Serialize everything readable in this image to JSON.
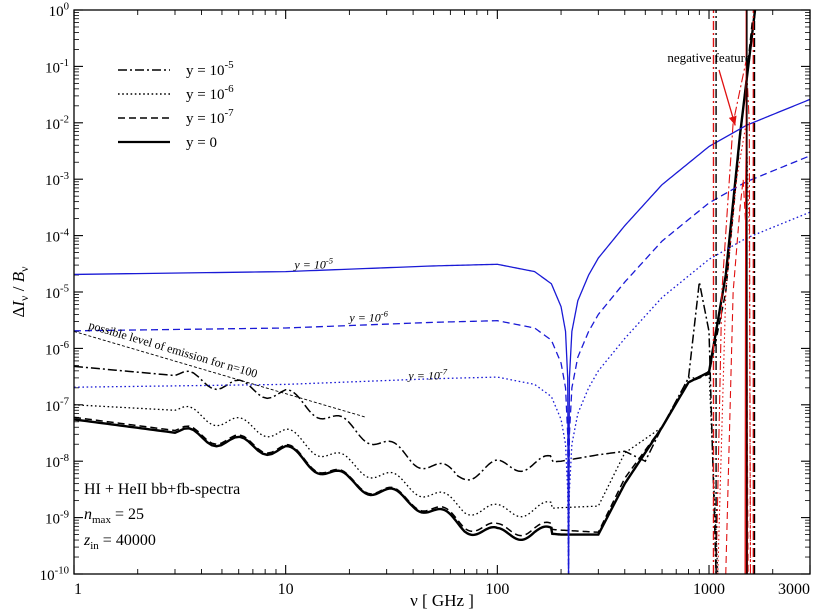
{
  "chart_data": {
    "type": "line",
    "title": "",
    "xlabel": {
      "base": "ν",
      "unit": " [ GHz ]"
    },
    "ylabel": {
      "delta": "Δ",
      "I": "I",
      "B": "B",
      "sub": "ν",
      "slash": " / "
    },
    "xscale": "log",
    "yscale": "log",
    "xlim": [
      1,
      3000
    ],
    "ylim": [
      1e-10,
      1
    ],
    "x_ticks": [
      {
        "value": 1,
        "label": "1"
      },
      {
        "value": 10,
        "label": "10"
      },
      {
        "value": 100,
        "label": "100"
      },
      {
        "value": 1000,
        "label": "1000"
      },
      {
        "value": 3000,
        "label": "3000"
      }
    ],
    "y_ticks": [
      {
        "value": 1e-10,
        "base": "10",
        "exp": "-10"
      },
      {
        "value": 1e-09,
        "base": "10",
        "exp": "-9"
      },
      {
        "value": 1e-08,
        "base": "10",
        "exp": "-8"
      },
      {
        "value": 1e-07,
        "base": "10",
        "exp": "-7"
      },
      {
        "value": 1e-06,
        "base": "10",
        "exp": "-6"
      },
      {
        "value": 1e-05,
        "base": "10",
        "exp": "-5"
      },
      {
        "value": 0.0001,
        "base": "10",
        "exp": "-4"
      },
      {
        "value": 0.001,
        "base": "10",
        "exp": "-3"
      },
      {
        "value": 0.01,
        "base": "10",
        "exp": "-2"
      },
      {
        "value": 0.1,
        "base": "10",
        "exp": "-1"
      },
      {
        "value": 1,
        "base": "10",
        "exp": "0"
      }
    ],
    "legend": {
      "position": "top-left",
      "entries": [
        {
          "label": "y = 10",
          "exp": "-5",
          "style": "dashdot"
        },
        {
          "label": "y = 10",
          "exp": "-6",
          "style": "dotted"
        },
        {
          "label": "y = 10",
          "exp": "-7",
          "style": "dashed"
        },
        {
          "label": "y = 0",
          "exp": "",
          "style": "solid"
        }
      ]
    },
    "colors": {
      "spectra": "#000000",
      "y_distortion": "#1a1ad6",
      "negative": "#e01010"
    },
    "series": [
      {
        "name": "y = 10^-5 (HI+HeII)",
        "color": "#000000",
        "dash": "dashdot",
        "width": 1.5,
        "points": [
          [
            1,
            4.8e-07
          ],
          [
            3,
            3.3e-07
          ],
          [
            10,
            1.5e-07
          ],
          [
            20,
            4e-08
          ],
          [
            40,
            1.1e-08
          ],
          [
            65,
            5.5e-09
          ],
          [
            100,
            8e-09
          ],
          [
            200,
            1e-08
          ],
          [
            300,
            1.3e-08
          ],
          [
            400,
            1.5e-08
          ],
          [
            500,
            1e-08
          ],
          [
            600,
            4e-08
          ],
          [
            800,
            3e-07
          ],
          [
            900,
            1.5e-05
          ],
          [
            1000,
            2e-06
          ],
          [
            1080,
            1e-10
          ]
        ]
      },
      {
        "name": "y = 10^-6 (HI+HeII)",
        "color": "#000000",
        "dash": "dotted",
        "width": 1.3,
        "points": [
          [
            1,
            1e-07
          ],
          [
            3,
            8e-08
          ],
          [
            10,
            3e-08
          ],
          [
            20,
            9e-09
          ],
          [
            40,
            3.5e-09
          ],
          [
            70,
            1.5e-09
          ],
          [
            100,
            1.3e-09
          ],
          [
            150,
            1.4e-09
          ],
          [
            200,
            1.5e-09
          ],
          [
            300,
            1.6e-09
          ],
          [
            400,
            1.4e-08
          ],
          [
            600,
            4e-08
          ],
          [
            800,
            3e-07
          ],
          [
            900,
            3e-07
          ],
          [
            1000,
            4e-07
          ],
          [
            1100,
            1e-10
          ]
        ]
      },
      {
        "name": "y = 10^-7 (HI+HeII)",
        "color": "#000000",
        "dash": "dashed",
        "width": 1.5,
        "points": [
          [
            1,
            6e-08
          ],
          [
            3,
            3.5e-08
          ],
          [
            10,
            1.6e-08
          ],
          [
            20,
            4.5e-09
          ],
          [
            40,
            2e-09
          ],
          [
            70,
            8e-10
          ],
          [
            100,
            6e-10
          ],
          [
            150,
            6.5e-10
          ],
          [
            200,
            6e-10
          ],
          [
            300,
            5.5e-10
          ],
          [
            400,
            5e-09
          ],
          [
            600,
            4e-08
          ],
          [
            800,
            2.5e-07
          ],
          [
            1000,
            3.5e-07
          ],
          [
            1200,
            1e-05
          ],
          [
            1400,
            0.005
          ],
          [
            1600,
            0.6
          ]
        ]
      },
      {
        "name": "y = 0 (HI+HeII)",
        "color": "#000000",
        "dash": "solid",
        "width": 2.4,
        "points": [
          [
            1,
            5.5e-08
          ],
          [
            3,
            3.2e-08
          ],
          [
            10,
            1.5e-08
          ],
          [
            20,
            4.3e-09
          ],
          [
            40,
            1.9e-09
          ],
          [
            70,
            7e-10
          ],
          [
            100,
            5e-10
          ],
          [
            150,
            5.5e-10
          ],
          [
            200,
            5e-10
          ],
          [
            300,
            5e-10
          ],
          [
            400,
            4e-09
          ],
          [
            600,
            4e-08
          ],
          [
            800,
            2.5e-07
          ],
          [
            1000,
            3.8e-07
          ],
          [
            1200,
            2e-05
          ],
          [
            1400,
            0.006
          ],
          [
            1650,
            1
          ]
        ]
      },
      {
        "name": "y-distortion y = 10^-5",
        "color": "#1a1ad6",
        "dash": "solid",
        "width": 1.3,
        "points": [
          [
            1,
            2.05e-05
          ],
          [
            10,
            2.3e-05
          ],
          [
            50,
            2.9e-05
          ],
          [
            100,
            3.1e-05
          ],
          [
            150,
            2.3e-05
          ],
          [
            180,
            1.4e-05
          ],
          [
            200,
            5.5e-06
          ],
          [
            210,
            2e-06
          ],
          [
            215,
            3e-07
          ],
          [
            217,
            1e-10
          ],
          [
            219,
            3e-07
          ],
          [
            225,
            2e-06
          ],
          [
            240,
            7e-06
          ],
          [
            270,
            2e-05
          ],
          [
            300,
            4e-05
          ],
          [
            400,
            0.00015
          ],
          [
            600,
            0.0008
          ],
          [
            1000,
            0.0038
          ],
          [
            1500,
            0.009
          ],
          [
            2000,
            0.014
          ],
          [
            3000,
            0.026
          ]
        ]
      },
      {
        "name": "y-distortion y = 10^-6",
        "color": "#1a1ad6",
        "dash": "dashed",
        "width": 1.3,
        "points": [
          [
            1,
            2.05e-06
          ],
          [
            10,
            2.3e-06
          ],
          [
            50,
            2.9e-06
          ],
          [
            100,
            3.1e-06
          ],
          [
            150,
            2.3e-06
          ],
          [
            180,
            1.4e-06
          ],
          [
            200,
            5.5e-07
          ],
          [
            210,
            2e-07
          ],
          [
            215,
            3e-08
          ],
          [
            217,
            1e-10
          ],
          [
            219,
            3e-08
          ],
          [
            225,
            2e-07
          ],
          [
            240,
            7e-07
          ],
          [
            270,
            2e-06
          ],
          [
            300,
            4e-06
          ],
          [
            400,
            1.5e-05
          ],
          [
            600,
            8e-05
          ],
          [
            1000,
            0.00038
          ],
          [
            1500,
            0.0009
          ],
          [
            2000,
            0.0014
          ],
          [
            3000,
            0.0026
          ]
        ]
      },
      {
        "name": "y-distortion y = 10^-7",
        "color": "#1a1ad6",
        "dash": "dotted",
        "width": 1.3,
        "points": [
          [
            1,
            2.05e-07
          ],
          [
            10,
            2.3e-07
          ],
          [
            50,
            2.9e-07
          ],
          [
            100,
            3.1e-07
          ],
          [
            150,
            2.3e-07
          ],
          [
            180,
            1.4e-07
          ],
          [
            200,
            5.5e-08
          ],
          [
            210,
            2e-08
          ],
          [
            215,
            3e-09
          ],
          [
            217,
            1e-10
          ],
          [
            219,
            3e-09
          ],
          [
            225,
            2e-08
          ],
          [
            240,
            7e-08
          ],
          [
            270,
            2e-07
          ],
          [
            300,
            4e-07
          ],
          [
            400,
            1.5e-06
          ],
          [
            600,
            8e-06
          ],
          [
            1000,
            3.8e-05
          ],
          [
            1500,
            9e-05
          ],
          [
            2000,
            0.00014
          ],
          [
            3000,
            0.00026
          ]
        ]
      },
      {
        "name": "negative y = 10^-5",
        "color": "#e01010",
        "dash": "dashdot",
        "width": 1.1,
        "points": [
          [
            1080,
            1e-10
          ],
          [
            1150,
            1e-05
          ],
          [
            1300,
            0.01
          ],
          [
            1500,
            0.13
          ],
          [
            1550,
            0.01
          ],
          [
            1570,
            1e-10
          ]
        ]
      },
      {
        "name": "negative y = 10^-6",
        "color": "#e01010",
        "dash": "dotted",
        "width": 1.1,
        "points": [
          [
            1100,
            1e-10
          ],
          [
            1200,
            1e-05
          ],
          [
            1350,
            0.001
          ],
          [
            1500,
            0.01
          ],
          [
            1550,
            0.0001
          ],
          [
            1570,
            1e-10
          ]
        ]
      },
      {
        "name": "negative y = 10^-7",
        "color": "#e01010",
        "dash": "dashed",
        "width": 1.1,
        "points": [
          [
            1200,
            1e-10
          ],
          [
            1300,
            1e-05
          ],
          [
            1400,
            0.0003
          ],
          [
            1450,
            0.001
          ],
          [
            1500,
            0.0001
          ],
          [
            1530,
            1e-10
          ]
        ]
      },
      {
        "name": "negative y = 0",
        "color": "#e01010",
        "dash": "solid",
        "width": 1.1,
        "points": [
          [
            1480,
            1e-10
          ],
          [
            1490,
            0.001
          ],
          [
            1500,
            0.005
          ],
          [
            1510,
            0.001
          ],
          [
            1520,
            1e-10
          ]
        ]
      }
    ],
    "vertical_lines": [
      {
        "x": 1050,
        "color": "#e01010",
        "dash": "dashdot"
      },
      {
        "x": 1080,
        "color": "#000000",
        "dash": "dashdot"
      },
      {
        "x": 1500,
        "color": "#e01010",
        "dash": "solid"
      },
      {
        "x": 1510,
        "color": "#000000",
        "dash": "solid"
      },
      {
        "x": 1620,
        "color": "#e01010",
        "dash": "dashdot"
      },
      {
        "x": 1640,
        "color": "#000000",
        "dash": "dashdot"
      }
    ],
    "annotations": {
      "curve_labels": [
        {
          "x": 11,
          "y": 2.6e-05,
          "text": "y = 10",
          "exp": "-5"
        },
        {
          "x": 20,
          "y": 3e-06,
          "text": "y = 10",
          "exp": "-6"
        },
        {
          "x": 38,
          "y": 2.8e-07,
          "text": "y = 10",
          "exp": "-7"
        }
      ],
      "emission_line": {
        "text": "possible level of emission for n=100",
        "x1": 1,
        "y1": 2e-06,
        "x2": 24,
        "y2": 6e-08
      },
      "info_box": {
        "line1": "HI + HeII bb+fb-spectra",
        "nmax_symbol": "n",
        "nmax_sub": "max",
        "nmax_value": " = 25",
        "zin_symbol": "z",
        "zin_sub": "in",
        "zin_value": " = 40000"
      },
      "negative_feature": {
        "text": "negative feature",
        "tx": 1000,
        "ty": 0.12,
        "ax": 1330,
        "ay": 0.009
      }
    }
  }
}
